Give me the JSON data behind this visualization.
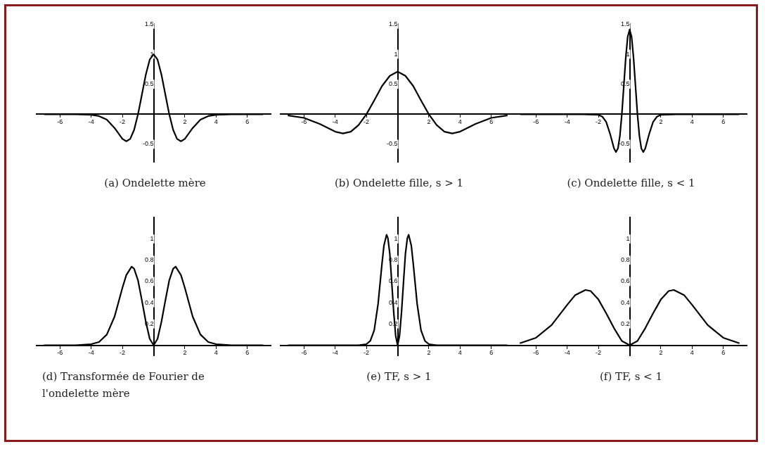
{
  "chart_data": [
    {
      "type": "line",
      "title": "(a) Ondelette mère",
      "x": [
        -7,
        -6,
        -5,
        -4,
        -3.5,
        -3,
        -2.5,
        -2,
        -1.75,
        -1.5,
        -1.25,
        -1,
        -0.75,
        -0.5,
        -0.25,
        0,
        0.25,
        0.5,
        0.75,
        1,
        1.25,
        1.5,
        1.75,
        2,
        2.5,
        3,
        3.5,
        4,
        5,
        6,
        7
      ],
      "series": [
        {
          "color": "#000000",
          "values": [
            0,
            0,
            0,
            -0.01,
            -0.03,
            -0.09,
            -0.23,
            -0.41,
            -0.45,
            -0.41,
            -0.26,
            0,
            0.33,
            0.66,
            0.91,
            1,
            0.91,
            0.66,
            0.33,
            0,
            -0.26,
            -0.41,
            -0.45,
            -0.41,
            -0.23,
            -0.09,
            -0.03,
            -0.01,
            0,
            0,
            0
          ]
        }
      ],
      "xlim": [
        -7.5,
        7.5
      ],
      "ylim": [
        -0.8,
        1.5
      ],
      "xticks": [
        -6,
        -4,
        -2,
        2,
        4,
        6
      ],
      "yticks": [
        -0.5,
        0.5,
        1,
        1.5
      ],
      "marker": "none"
    },
    {
      "type": "line",
      "title": "(b) Ondelette fille, s > 1",
      "x": [
        -7,
        -6,
        -5,
        -4,
        -3.5,
        -3,
        -2.5,
        -2,
        -1.5,
        -1,
        -0.5,
        0,
        0.5,
        1,
        1.5,
        2,
        2.5,
        3,
        3.5,
        4,
        5,
        6,
        7
      ],
      "series": [
        {
          "color": "#000000",
          "values": [
            -0.02,
            -0.06,
            -0.16,
            -0.29,
            -0.32,
            -0.29,
            -0.18,
            0,
            0.23,
            0.47,
            0.64,
            0.71,
            0.64,
            0.47,
            0.23,
            0,
            -0.18,
            -0.29,
            -0.32,
            -0.29,
            -0.16,
            -0.06,
            -0.02
          ]
        }
      ],
      "xlim": [
        -7.5,
        7.5
      ],
      "ylim": [
        -0.8,
        1.5
      ],
      "xticks": [
        -6,
        -4,
        -2,
        2,
        4,
        6
      ],
      "yticks": [
        -0.5,
        0.5,
        1,
        1.5
      ],
      "marker": "none"
    },
    {
      "type": "line",
      "title": "(c) Ondelette fille, s < 1",
      "x": [
        -7,
        -3.5,
        -3,
        -2,
        -1.75,
        -1.5,
        -1.25,
        -1,
        -0.875,
        -0.75,
        -0.625,
        -0.5,
        -0.375,
        -0.25,
        -0.125,
        0,
        0.125,
        0.25,
        0.375,
        0.5,
        0.625,
        0.75,
        0.875,
        1,
        1.25,
        1.5,
        1.75,
        2,
        3,
        3.5,
        7
      ],
      "series": [
        {
          "color": "#000000",
          "values": [
            0,
            0,
            0,
            -0.01,
            -0.04,
            -0.13,
            -0.33,
            -0.57,
            -0.63,
            -0.57,
            -0.36,
            0,
            0.47,
            0.94,
            1.29,
            1.41,
            1.29,
            0.94,
            0.47,
            0,
            -0.36,
            -0.57,
            -0.63,
            -0.57,
            -0.33,
            -0.13,
            -0.04,
            -0.01,
            0,
            0,
            0
          ]
        }
      ],
      "xlim": [
        -7.5,
        7.5
      ],
      "ylim": [
        -0.8,
        1.5
      ],
      "xticks": [
        -6,
        -4,
        -2,
        2,
        4,
        6
      ],
      "yticks": [
        -0.5,
        0.5,
        1,
        1.5
      ],
      "marker": "none"
    },
    {
      "type": "line",
      "title": "(d) Transformée de Fourier de l'ondelette mère",
      "x": [
        -7,
        -5,
        -4,
        -3.5,
        -3,
        -2.5,
        -2,
        -1.75,
        -1.41,
        -1.25,
        -1,
        -0.75,
        -0.5,
        -0.25,
        0,
        0.25,
        0.5,
        0.75,
        1,
        1.25,
        1.41,
        1.75,
        2,
        2.5,
        3,
        3.5,
        4,
        5,
        7
      ],
      "series": [
        {
          "color": "#000000",
          "values": [
            0,
            0,
            0.01,
            0.03,
            0.1,
            0.27,
            0.54,
            0.66,
            0.74,
            0.72,
            0.61,
            0.42,
            0.22,
            0.06,
            0,
            0.06,
            0.22,
            0.42,
            0.61,
            0.72,
            0.74,
            0.66,
            0.54,
            0.27,
            0.1,
            0.03,
            0.01,
            0,
            0
          ]
        }
      ],
      "xlim": [
        -7.5,
        7.5
      ],
      "ylim": [
        -0.1,
        1.2
      ],
      "xticks": [
        -6,
        -4,
        -2,
        2,
        4,
        6
      ],
      "yticks": [
        0.2,
        0.4,
        0.6,
        0.8,
        1
      ],
      "marker": "none"
    },
    {
      "type": "line",
      "title": "(e) TF, s > 1",
      "x": [
        -7,
        -3.5,
        -2.5,
        -2,
        -1.75,
        -1.5,
        -1.25,
        -1,
        -0.875,
        -0.707,
        -0.625,
        -0.5,
        -0.375,
        -0.25,
        -0.125,
        0,
        0.125,
        0.25,
        0.375,
        0.5,
        0.625,
        0.707,
        0.875,
        1,
        1.25,
        1.5,
        1.75,
        2,
        2.5,
        3.5,
        7
      ],
      "series": [
        {
          "color": "#000000",
          "values": [
            0,
            0,
            0,
            0.01,
            0.04,
            0.14,
            0.39,
            0.77,
            0.94,
            1.04,
            1.01,
            0.86,
            0.59,
            0.31,
            0.09,
            0,
            0.09,
            0.31,
            0.59,
            0.86,
            1.01,
            1.04,
            0.94,
            0.77,
            0.39,
            0.14,
            0.04,
            0.01,
            0,
            0,
            0
          ]
        }
      ],
      "xlim": [
        -7.5,
        7.5
      ],
      "ylim": [
        -0.1,
        1.2
      ],
      "xticks": [
        -6,
        -4,
        -2,
        2,
        4,
        6
      ],
      "yticks": [
        0.2,
        0.4,
        0.6,
        0.8,
        1
      ],
      "marker": "none"
    },
    {
      "type": "line",
      "title": "(f) TF, s < 1",
      "x": [
        -7,
        -6,
        -5,
        -4,
        -3.5,
        -2.83,
        -2.5,
        -2,
        -1.5,
        -1,
        -0.5,
        0,
        0.5,
        1,
        1.5,
        2,
        2.5,
        2.83,
        3.5,
        4,
        5,
        6,
        7
      ],
      "series": [
        {
          "color": "#000000",
          "values": [
            0.02,
            0.07,
            0.19,
            0.38,
            0.47,
            0.52,
            0.51,
            0.43,
            0.3,
            0.16,
            0.04,
            0,
            0.04,
            0.16,
            0.3,
            0.43,
            0.51,
            0.52,
            0.47,
            0.38,
            0.19,
            0.07,
            0.02
          ]
        }
      ],
      "xlim": [
        -7.5,
        7.5
      ],
      "ylim": [
        -0.1,
        1.2
      ],
      "xticks": [
        -6,
        -4,
        -2,
        2,
        4,
        6
      ],
      "yticks": [
        0.2,
        0.4,
        0.6,
        0.8,
        1
      ],
      "marker": "none"
    }
  ]
}
